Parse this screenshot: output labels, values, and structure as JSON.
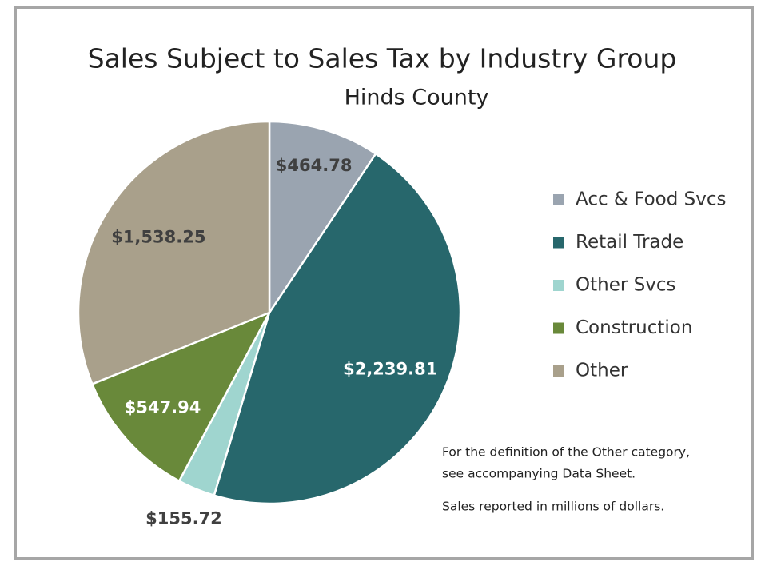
{
  "chart_data": {
    "type": "pie",
    "title": "Sales Subject to Sales Tax by Industry Group",
    "subtitle": "Hinds County",
    "categories": [
      "Acc & Food Svcs",
      "Retail Trade",
      "Other Svcs",
      "Construction",
      "Other"
    ],
    "values": [
      464.78,
      2239.81,
      155.72,
      547.94,
      1538.25
    ],
    "value_labels": [
      "$464.78",
      "$2,239.81",
      "$155.72",
      "$547.94",
      "$1,538.25"
    ],
    "colors": [
      "#9aa4b0",
      "#27676c",
      "#9fd5cf",
      "#69893a",
      "#a9a08b"
    ],
    "legend": "right",
    "notes": [
      "For the definition of the Other category,",
      "see accompanying Data Sheet.",
      "Sales reported in millions of dollars."
    ]
  }
}
